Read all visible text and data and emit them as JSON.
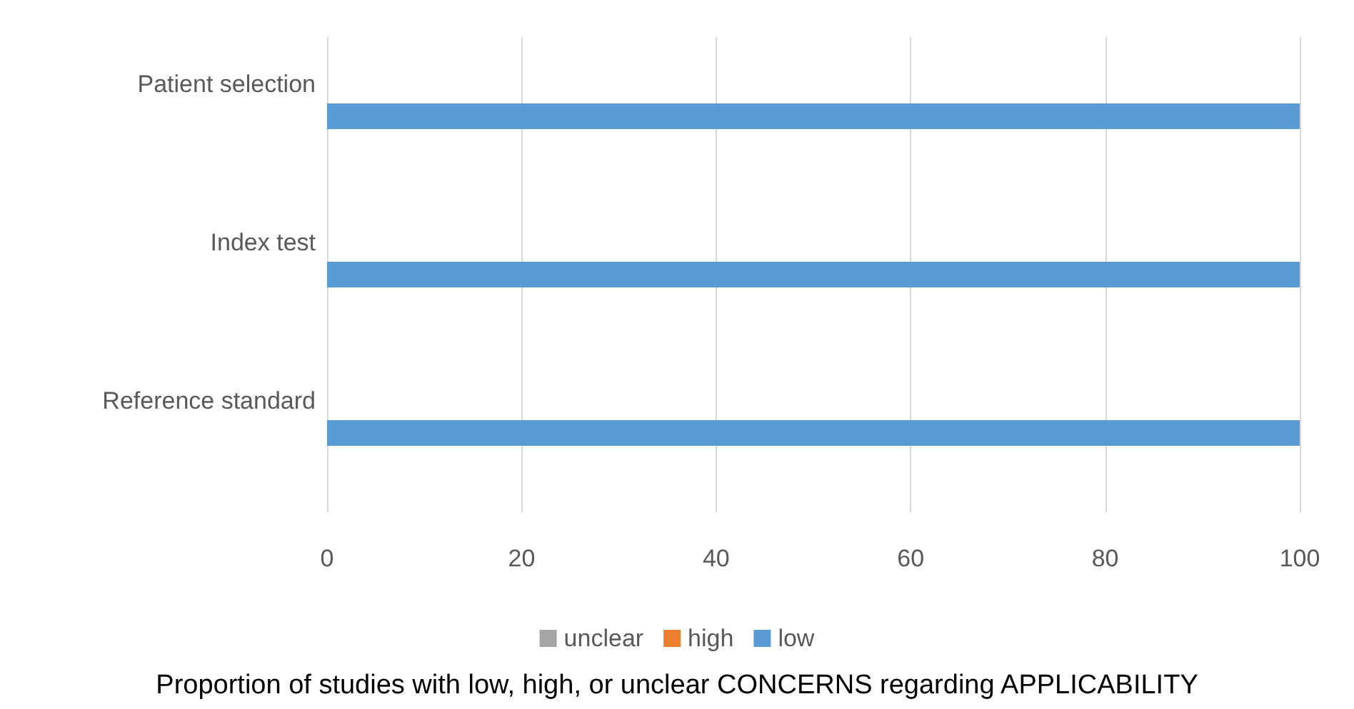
{
  "chart_data": {
    "type": "bar",
    "orientation": "horizontal",
    "stacked": true,
    "title": "Proportion of studies with low, high, or unclear CONCERNS regarding APPLICABILITY",
    "categories": [
      "Patient selection",
      "Index test",
      "Reference standard"
    ],
    "series": [
      {
        "name": "unclear",
        "color": "#a5a5a5",
        "values": [
          0,
          0,
          0
        ]
      },
      {
        "name": "high",
        "color": "#ed7d31",
        "values": [
          0,
          0,
          0
        ]
      },
      {
        "name": "low",
        "color": "#5b9bd5",
        "values": [
          100,
          100,
          100
        ]
      }
    ],
    "xlim": [
      0,
      100
    ],
    "xticks": [
      0,
      20,
      40,
      60,
      80,
      100
    ],
    "grid": "x",
    "legend": "bottom"
  }
}
